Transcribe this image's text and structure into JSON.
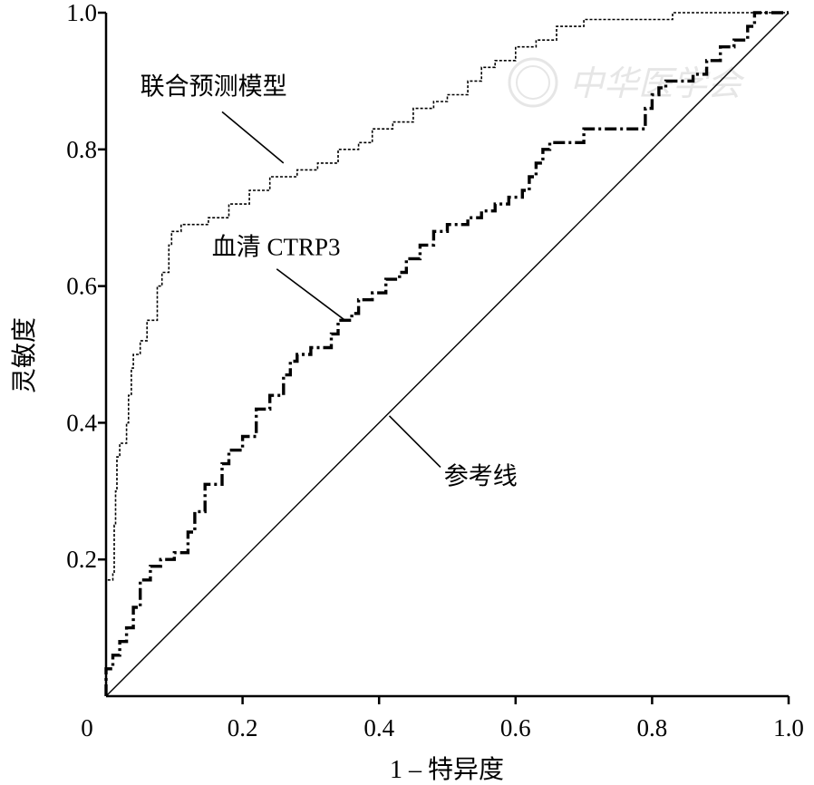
{
  "chart_data": {
    "type": "line",
    "title": "",
    "xlabel": "1 – 特异度",
    "ylabel": "灵敏度",
    "xlim": [
      0,
      1
    ],
    "ylim": [
      0,
      1
    ],
    "x_ticks": [
      "0",
      "0.2",
      "0.4",
      "0.6",
      "0.8",
      "1.0"
    ],
    "y_ticks": [
      "0.2",
      "0.4",
      "0.6",
      "0.8",
      "1.0"
    ],
    "grid": false,
    "legend": "none",
    "watermark": "中华医学会",
    "series": [
      {
        "name": "联合预测模型",
        "style": "dotted",
        "points": [
          [
            0,
            0
          ],
          [
            0,
            0.17
          ],
          [
            0.01,
            0.17
          ],
          [
            0.01,
            0.18
          ],
          [
            0.012,
            0.18
          ],
          [
            0.012,
            0.25
          ],
          [
            0.014,
            0.25
          ],
          [
            0.014,
            0.3
          ],
          [
            0.016,
            0.3
          ],
          [
            0.016,
            0.35
          ],
          [
            0.02,
            0.35
          ],
          [
            0.02,
            0.37
          ],
          [
            0.03,
            0.37
          ],
          [
            0.03,
            0.4
          ],
          [
            0.033,
            0.4
          ],
          [
            0.033,
            0.44
          ],
          [
            0.037,
            0.44
          ],
          [
            0.037,
            0.48
          ],
          [
            0.04,
            0.48
          ],
          [
            0.04,
            0.5
          ],
          [
            0.05,
            0.5
          ],
          [
            0.05,
            0.52
          ],
          [
            0.06,
            0.52
          ],
          [
            0.06,
            0.55
          ],
          [
            0.075,
            0.55
          ],
          [
            0.075,
            0.6
          ],
          [
            0.082,
            0.6
          ],
          [
            0.082,
            0.62
          ],
          [
            0.092,
            0.62
          ],
          [
            0.092,
            0.66
          ],
          [
            0.096,
            0.66
          ],
          [
            0.096,
            0.68
          ],
          [
            0.11,
            0.68
          ],
          [
            0.11,
            0.69
          ],
          [
            0.15,
            0.69
          ],
          [
            0.15,
            0.7
          ],
          [
            0.18,
            0.7
          ],
          [
            0.18,
            0.72
          ],
          [
            0.21,
            0.72
          ],
          [
            0.21,
            0.74
          ],
          [
            0.24,
            0.74
          ],
          [
            0.24,
            0.76
          ],
          [
            0.28,
            0.76
          ],
          [
            0.28,
            0.77
          ],
          [
            0.31,
            0.77
          ],
          [
            0.31,
            0.78
          ],
          [
            0.34,
            0.78
          ],
          [
            0.34,
            0.8
          ],
          [
            0.37,
            0.8
          ],
          [
            0.37,
            0.81
          ],
          [
            0.39,
            0.81
          ],
          [
            0.39,
            0.83
          ],
          [
            0.42,
            0.83
          ],
          [
            0.42,
            0.84
          ],
          [
            0.45,
            0.84
          ],
          [
            0.45,
            0.86
          ],
          [
            0.48,
            0.86
          ],
          [
            0.48,
            0.87
          ],
          [
            0.5,
            0.87
          ],
          [
            0.5,
            0.88
          ],
          [
            0.53,
            0.88
          ],
          [
            0.53,
            0.9
          ],
          [
            0.55,
            0.9
          ],
          [
            0.55,
            0.92
          ],
          [
            0.57,
            0.92
          ],
          [
            0.57,
            0.93
          ],
          [
            0.6,
            0.93
          ],
          [
            0.6,
            0.95
          ],
          [
            0.63,
            0.95
          ],
          [
            0.63,
            0.96
          ],
          [
            0.66,
            0.96
          ],
          [
            0.66,
            0.98
          ],
          [
            0.7,
            0.98
          ],
          [
            0.7,
            0.99
          ],
          [
            0.83,
            0.99
          ],
          [
            0.83,
            1.0
          ],
          [
            1.0,
            1.0
          ]
        ]
      },
      {
        "name": "血清 CTRP3",
        "style": "dash-dot",
        "points": [
          [
            0,
            0
          ],
          [
            0,
            0.04
          ],
          [
            0.01,
            0.04
          ],
          [
            0.01,
            0.06
          ],
          [
            0.02,
            0.06
          ],
          [
            0.02,
            0.08
          ],
          [
            0.03,
            0.08
          ],
          [
            0.03,
            0.1
          ],
          [
            0.04,
            0.1
          ],
          [
            0.04,
            0.13
          ],
          [
            0.05,
            0.13
          ],
          [
            0.05,
            0.17
          ],
          [
            0.065,
            0.17
          ],
          [
            0.065,
            0.19
          ],
          [
            0.08,
            0.19
          ],
          [
            0.08,
            0.2
          ],
          [
            0.1,
            0.2
          ],
          [
            0.1,
            0.21
          ],
          [
            0.12,
            0.21
          ],
          [
            0.12,
            0.24
          ],
          [
            0.13,
            0.24
          ],
          [
            0.13,
            0.27
          ],
          [
            0.145,
            0.27
          ],
          [
            0.145,
            0.31
          ],
          [
            0.17,
            0.31
          ],
          [
            0.17,
            0.34
          ],
          [
            0.18,
            0.34
          ],
          [
            0.18,
            0.36
          ],
          [
            0.2,
            0.36
          ],
          [
            0.2,
            0.38
          ],
          [
            0.22,
            0.38
          ],
          [
            0.22,
            0.42
          ],
          [
            0.24,
            0.42
          ],
          [
            0.24,
            0.44
          ],
          [
            0.26,
            0.44
          ],
          [
            0.26,
            0.47
          ],
          [
            0.27,
            0.47
          ],
          [
            0.27,
            0.49
          ],
          [
            0.28,
            0.49
          ],
          [
            0.28,
            0.5
          ],
          [
            0.3,
            0.5
          ],
          [
            0.3,
            0.51
          ],
          [
            0.33,
            0.51
          ],
          [
            0.33,
            0.53
          ],
          [
            0.34,
            0.53
          ],
          [
            0.34,
            0.55
          ],
          [
            0.36,
            0.55
          ],
          [
            0.36,
            0.56
          ],
          [
            0.37,
            0.56
          ],
          [
            0.37,
            0.58
          ],
          [
            0.39,
            0.58
          ],
          [
            0.39,
            0.59
          ],
          [
            0.41,
            0.59
          ],
          [
            0.41,
            0.61
          ],
          [
            0.43,
            0.61
          ],
          [
            0.43,
            0.62
          ],
          [
            0.44,
            0.62
          ],
          [
            0.44,
            0.64
          ],
          [
            0.46,
            0.64
          ],
          [
            0.46,
            0.66
          ],
          [
            0.48,
            0.66
          ],
          [
            0.48,
            0.68
          ],
          [
            0.5,
            0.68
          ],
          [
            0.5,
            0.69
          ],
          [
            0.53,
            0.69
          ],
          [
            0.53,
            0.7
          ],
          [
            0.55,
            0.7
          ],
          [
            0.55,
            0.71
          ],
          [
            0.57,
            0.71
          ],
          [
            0.57,
            0.72
          ],
          [
            0.59,
            0.72
          ],
          [
            0.59,
            0.73
          ],
          [
            0.61,
            0.73
          ],
          [
            0.61,
            0.74
          ],
          [
            0.62,
            0.74
          ],
          [
            0.62,
            0.76
          ],
          [
            0.63,
            0.76
          ],
          [
            0.63,
            0.78
          ],
          [
            0.64,
            0.78
          ],
          [
            0.64,
            0.8
          ],
          [
            0.65,
            0.8
          ],
          [
            0.65,
            0.81
          ],
          [
            0.7,
            0.81
          ],
          [
            0.7,
            0.83
          ],
          [
            0.79,
            0.83
          ],
          [
            0.79,
            0.86
          ],
          [
            0.8,
            0.86
          ],
          [
            0.8,
            0.88
          ],
          [
            0.81,
            0.88
          ],
          [
            0.81,
            0.89
          ],
          [
            0.82,
            0.89
          ],
          [
            0.82,
            0.9
          ],
          [
            0.86,
            0.9
          ],
          [
            0.86,
            0.91
          ],
          [
            0.88,
            0.91
          ],
          [
            0.88,
            0.93
          ],
          [
            0.9,
            0.93
          ],
          [
            0.9,
            0.95
          ],
          [
            0.92,
            0.95
          ],
          [
            0.92,
            0.96
          ],
          [
            0.94,
            0.96
          ],
          [
            0.94,
            0.98
          ],
          [
            0.95,
            0.98
          ],
          [
            0.95,
            1.0
          ],
          [
            1.0,
            1.0
          ]
        ]
      },
      {
        "name": "参考线",
        "style": "solid-thin",
        "points": [
          [
            0,
            0
          ],
          [
            1,
            1
          ]
        ]
      }
    ],
    "annotations": [
      {
        "text": "联合预测模型",
        "target_series": "联合预测模型",
        "label_point": [
          0.05,
          0.88
        ],
        "leader_from": [
          0.17,
          0.855
        ],
        "leader_to": [
          0.26,
          0.78
        ]
      },
      {
        "text": "血清 CTRP3",
        "target_series": "血清 CTRP3",
        "label_point": [
          0.155,
          0.645
        ],
        "leader_from": [
          0.25,
          0.625
        ],
        "leader_to": [
          0.35,
          0.55
        ]
      },
      {
        "text": "参考线",
        "target_series": "参考线",
        "label_point": [
          0.495,
          0.31
        ],
        "leader_from": [
          0.49,
          0.335
        ],
        "leader_to": [
          0.415,
          0.41
        ]
      }
    ]
  }
}
